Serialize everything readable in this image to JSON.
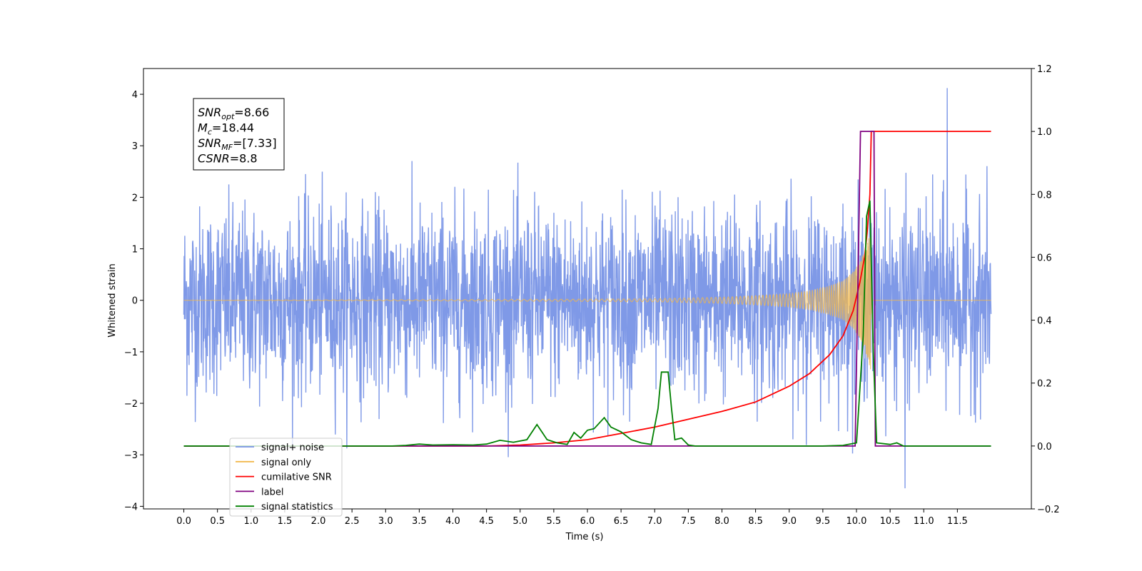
{
  "chart_data": {
    "type": "line",
    "xlabel": "Time (s)",
    "ylabel": "Whitened strain",
    "xlim": [
      -0.6,
      12.6
    ],
    "ylim": [
      -4.05,
      4.5
    ],
    "y2lim": [
      -0.2,
      1.2
    ],
    "x_ticks": [
      0.0,
      0.5,
      1.0,
      1.5,
      2.0,
      2.5,
      3.0,
      3.5,
      4.0,
      4.5,
      5.0,
      5.5,
      6.0,
      6.5,
      7.0,
      7.5,
      8.0,
      8.5,
      9.0,
      9.5,
      10.0,
      10.5,
      11.0,
      11.5
    ],
    "x_tick_labels": [
      "0.0",
      "0.5",
      "1.0",
      "1.5",
      "2.0",
      "2.5",
      "3.0",
      "3.5",
      "4.0",
      "4.5",
      "5.0",
      "5.5",
      "6.0",
      "6.5",
      "7.0",
      "7.5",
      "8.0",
      "8.5",
      "9.0",
      "9.5",
      "10.0",
      "10.5",
      "11.0",
      "11.5"
    ],
    "y_ticks": [
      -4,
      -3,
      -2,
      -1,
      0,
      1,
      2,
      3,
      4
    ],
    "y_tick_labels": [
      "−4",
      "−3",
      "−2",
      "−1",
      "0",
      "1",
      "2",
      "3",
      "4"
    ],
    "y2_ticks": [
      -0.2,
      0.0,
      0.2,
      0.4,
      0.6,
      0.8,
      1.0,
      1.2
    ],
    "y2_tick_labels": [
      "−0.2",
      "0.0",
      "0.2",
      "0.4",
      "0.6",
      "0.8",
      "1.0",
      "1.2"
    ],
    "grid": false,
    "legend_position": "lower-left",
    "stats": [
      {
        "name": "SNR",
        "sub": "opt",
        "value": "=8.66"
      },
      {
        "name": "M",
        "sub": "c",
        "value": "=18.44"
      },
      {
        "name": "SNR",
        "sub": "MF",
        "value": "=[7.33]"
      },
      {
        "name": "CSNR",
        "sub": "",
        "value": "=8.8"
      }
    ],
    "series": [
      {
        "name": "signal+ noise",
        "axis": "left",
        "color": "#7893e6",
        "description_values": {
          "x_start": 0.0,
          "x_end": 12.0,
          "typical_range": [
            -2.5,
            2.5
          ],
          "max": 4.12,
          "max_x": 11.35,
          "min": -3.65,
          "min_x": 10.72
        }
      },
      {
        "name": "signal only",
        "axis": "left",
        "color": "#f2b84b",
        "envelope": {
          "x": [
            0.0,
            5.5,
            7.0,
            8.0,
            8.5,
            9.0,
            9.3,
            9.6,
            9.8,
            9.95,
            10.05,
            10.12,
            10.18,
            10.21,
            10.22,
            12.0
          ],
          "amplitude": [
            0.0,
            0.02,
            0.03,
            0.06,
            0.09,
            0.13,
            0.18,
            0.28,
            0.38,
            0.55,
            0.75,
            0.95,
            1.2,
            1.35,
            0.0,
            0.0
          ]
        }
      },
      {
        "name": "cumilative SNR",
        "axis": "right",
        "color": "#ff0000",
        "x": [
          0.0,
          4.5,
          5.0,
          5.5,
          6.0,
          6.5,
          7.0,
          7.5,
          8.0,
          8.5,
          9.0,
          9.3,
          9.6,
          9.8,
          9.95,
          10.05,
          10.12,
          10.16,
          10.2,
          10.22,
          12.0
        ],
        "y": [
          0.0,
          0.0,
          0.003,
          0.01,
          0.02,
          0.04,
          0.06,
          0.085,
          0.11,
          0.14,
          0.19,
          0.23,
          0.29,
          0.35,
          0.43,
          0.52,
          0.6,
          0.68,
          0.8,
          1.0,
          1.0
        ]
      },
      {
        "name": "label",
        "axis": "right",
        "color": "#800080",
        "x": [
          0.0,
          9.98,
          10.06,
          10.26,
          10.28,
          12.0
        ],
        "y": [
          0.0,
          0.0,
          1.0,
          1.0,
          0.0,
          0.0
        ]
      },
      {
        "name": "signal statistics",
        "axis": "right",
        "color": "#008000",
        "x": [
          0.0,
          3.1,
          3.3,
          3.5,
          3.7,
          4.0,
          4.3,
          4.5,
          4.7,
          4.9,
          5.1,
          5.25,
          5.4,
          5.55,
          5.7,
          5.8,
          5.9,
          6.0,
          6.1,
          6.25,
          6.35,
          6.5,
          6.65,
          6.8,
          6.95,
          7.05,
          7.1,
          7.2,
          7.25,
          7.3,
          7.4,
          7.5,
          7.6,
          7.8,
          8.0,
          9.5,
          9.8,
          10.0,
          10.1,
          10.15,
          10.2,
          10.25,
          10.3,
          10.5,
          10.6,
          10.7,
          12.0
        ],
        "y": [
          0.0,
          0.0,
          0.002,
          0.006,
          0.003,
          0.004,
          0.003,
          0.006,
          0.018,
          0.012,
          0.02,
          0.068,
          0.02,
          0.01,
          0.005,
          0.043,
          0.025,
          0.05,
          0.055,
          0.09,
          0.06,
          0.045,
          0.02,
          0.01,
          0.005,
          0.12,
          0.235,
          0.235,
          0.12,
          0.02,
          0.025,
          0.003,
          0.0,
          0.0,
          0.0,
          0.0,
          0.002,
          0.01,
          0.35,
          0.73,
          0.78,
          0.3,
          0.01,
          0.005,
          0.01,
          0.0,
          0.0
        ]
      }
    ]
  }
}
